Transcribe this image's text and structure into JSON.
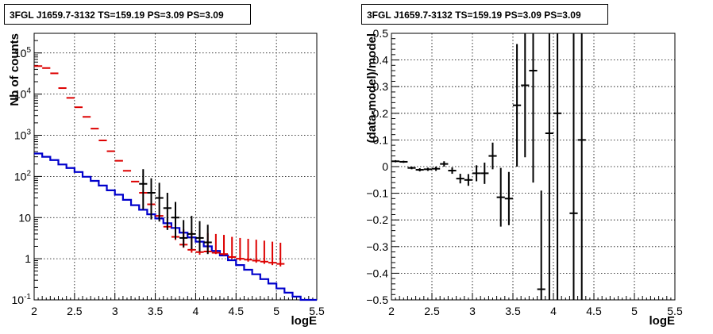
{
  "chart_data": [
    {
      "type": "line",
      "title": "3FGL J1659.7-3132 TS=159.19 PS=3.09 PS=3.09",
      "xlabel": "logE",
      "ylabel": "Nb of counts",
      "xlim": [
        2,
        5.5
      ],
      "ylim": [
        0.1,
        300000
      ],
      "yscale": "log",
      "grid": true,
      "x_ticks": [
        "2",
        "2.5",
        "3",
        "3.5",
        "4",
        "4.5",
        "5",
        "5.5"
      ],
      "y_ticks": [
        "10^{-1}",
        "1",
        "10",
        "10^{2}",
        "10^{3}",
        "10^{4}",
        "10^{5}"
      ],
      "bin_edges": [
        2.0,
        2.1,
        2.2,
        2.3,
        2.4,
        2.5,
        2.6,
        2.7,
        2.8,
        2.9,
        3.0,
        3.1,
        3.2,
        3.3,
        3.4,
        3.5,
        3.6,
        3.7,
        3.8,
        3.9,
        4.0,
        4.1,
        4.2,
        4.3,
        4.4,
        4.5,
        4.6,
        4.7,
        4.8,
        4.9,
        5.0,
        5.1,
        5.2,
        5.3,
        5.4,
        5.5
      ],
      "series": [
        {
          "color": "#0000cc",
          "style": "step",
          "values": [
            360,
            300,
            250,
            195,
            160,
            128,
            98,
            78,
            60,
            46,
            36,
            27,
            20,
            15.5,
            12,
            9.5,
            7.3,
            5.6,
            4.3,
            3.3,
            2.6,
            2.0,
            1.55,
            1.2,
            0.92,
            0.7,
            0.54,
            0.42,
            0.32,
            0.25,
            0.19,
            0.15,
            0.12,
            0.1,
            0.1
          ]
        },
        {
          "color": "#dd0000",
          "style": "points",
          "x": [
            2.05,
            2.15,
            2.25,
            2.35,
            2.45,
            2.55,
            2.65,
            2.75,
            2.85,
            2.95,
            3.05,
            3.15,
            3.25,
            3.35,
            3.45,
            3.55,
            3.65,
            3.75,
            3.85,
            3.95,
            4.05,
            4.15,
            4.25,
            4.35,
            4.45,
            4.55,
            4.65,
            4.75,
            4.85,
            4.95,
            5.05
          ],
          "y": [
            48000,
            43000,
            32000,
            14000,
            8100,
            4800,
            2800,
            1450,
            750,
            410,
            240,
            137,
            75,
            40,
            21,
            11,
            6.0,
            3.4,
            2.2,
            1.65,
            1.45,
            1.5,
            1.4,
            1.3,
            1.1,
            1.0,
            0.95,
            0.9,
            0.85,
            0.8,
            0.75
          ],
          "err_low": [
            0.55,
            0.55,
            0.55,
            0.55,
            0.55,
            0.55,
            0.55,
            0.55,
            0.55,
            0.55,
            0.55,
            0.55,
            0.55,
            0.55,
            0.55,
            0.55,
            0.55,
            0.55,
            0.35,
            0.25,
            0.2,
            0.12,
            0.1,
            0.1,
            0.1,
            0.1,
            0.1,
            0.1,
            0.1,
            0.1,
            0.1
          ],
          "err_high": [
            0.55,
            0.55,
            0.55,
            0.55,
            0.55,
            0.55,
            0.55,
            0.55,
            0.55,
            0.55,
            0.55,
            0.55,
            0.55,
            0.55,
            0.55,
            0.55,
            0.55,
            0.55,
            3,
            3,
            2.8,
            2.7,
            2.6,
            2.5,
            2.3,
            2.2,
            2.1,
            2.0,
            1.9,
            1.8,
            1.7
          ]
        },
        {
          "color": "#000000",
          "style": "points",
          "x": [
            3.35,
            3.45,
            3.55,
            3.65,
            3.75,
            3.85,
            3.95,
            4.05,
            4.15
          ],
          "y": [
            66,
            40,
            30,
            17,
            10,
            3.2,
            4.0,
            3.2,
            2.5
          ],
          "err_low": [
            50,
            31,
            22,
            12,
            7,
            1.3,
            2.3,
            1.7,
            1.2
          ],
          "err_high": [
            84,
            50,
            40,
            23,
            14,
            5.5,
            7,
            5,
            4.2
          ]
        }
      ]
    },
    {
      "type": "scatter",
      "title": "3FGL J1659.7-3132 TS=159.19 PS=3.09 PS=3.09",
      "xlabel": "logE",
      "ylabel": "(data-model)/model",
      "xlim": [
        2,
        5.5
      ],
      "ylim": [
        -0.5,
        0.5
      ],
      "grid": true,
      "x_ticks": [
        "2",
        "2.5",
        "3",
        "3.5",
        "4",
        "4.5",
        "5",
        "5.5"
      ],
      "y_ticks": [
        "−0.5",
        "−0.4",
        "−0.3",
        "−0.2",
        "−0.1",
        "0",
        "0.1",
        "0.2",
        "0.3",
        "0.4",
        "0.5"
      ],
      "series": [
        {
          "color": "#000000",
          "x": [
            2.05,
            2.15,
            2.25,
            2.35,
            2.45,
            2.55,
            2.65,
            2.75,
            2.85,
            2.95,
            3.05,
            3.15,
            3.25,
            3.35,
            3.45,
            3.55,
            3.65,
            3.75,
            3.85,
            3.95,
            4.05,
            4.25,
            4.35
          ],
          "y": [
            0.02,
            0.018,
            -0.005,
            -0.012,
            -0.01,
            -0.008,
            0.01,
            -0.015,
            -0.045,
            -0.05,
            -0.025,
            -0.025,
            0.04,
            -0.115,
            -0.12,
            0.23,
            0.305,
            0.36,
            -0.46,
            0.125,
            0.2,
            -0.175,
            0.1
          ],
          "err": [
            0.004,
            0.004,
            0.005,
            0.006,
            0.006,
            0.008,
            0.01,
            0.012,
            0.018,
            0.022,
            0.03,
            0.04,
            0.05,
            0.11,
            0.1,
            0.23,
            0.27,
            0.42,
            0.37,
            0.63,
            0.75,
            0.9,
            0.9
          ]
        }
      ]
    }
  ]
}
